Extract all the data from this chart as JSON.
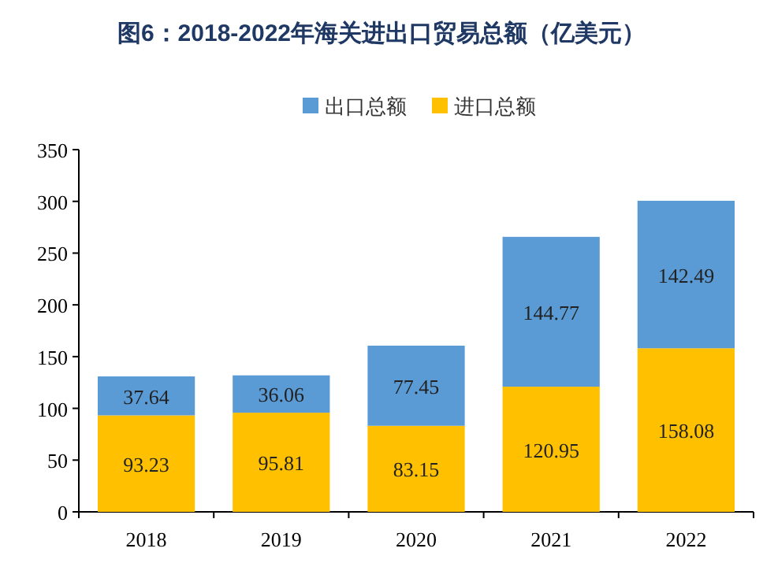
{
  "chart_data": {
    "type": "bar",
    "title": "图6：2018-2022年海关进出口贸易总额（亿美元）",
    "categories": [
      "2018",
      "2019",
      "2020",
      "2021",
      "2022"
    ],
    "stacked": true,
    "data_labels": true,
    "legend": "top",
    "grid": false,
    "ylim": [
      0,
      350
    ],
    "yticks": [
      0,
      50,
      100,
      150,
      200,
      250,
      300,
      350
    ],
    "series": [
      {
        "name": "进口总额",
        "color": "#ffc000",
        "values": [
          93.23,
          95.81,
          83.15,
          120.95,
          158.08
        ]
      },
      {
        "name": "出口总额",
        "color": "#5b9bd5",
        "values": [
          37.64,
          36.06,
          77.45,
          144.77,
          142.49
        ]
      }
    ]
  }
}
